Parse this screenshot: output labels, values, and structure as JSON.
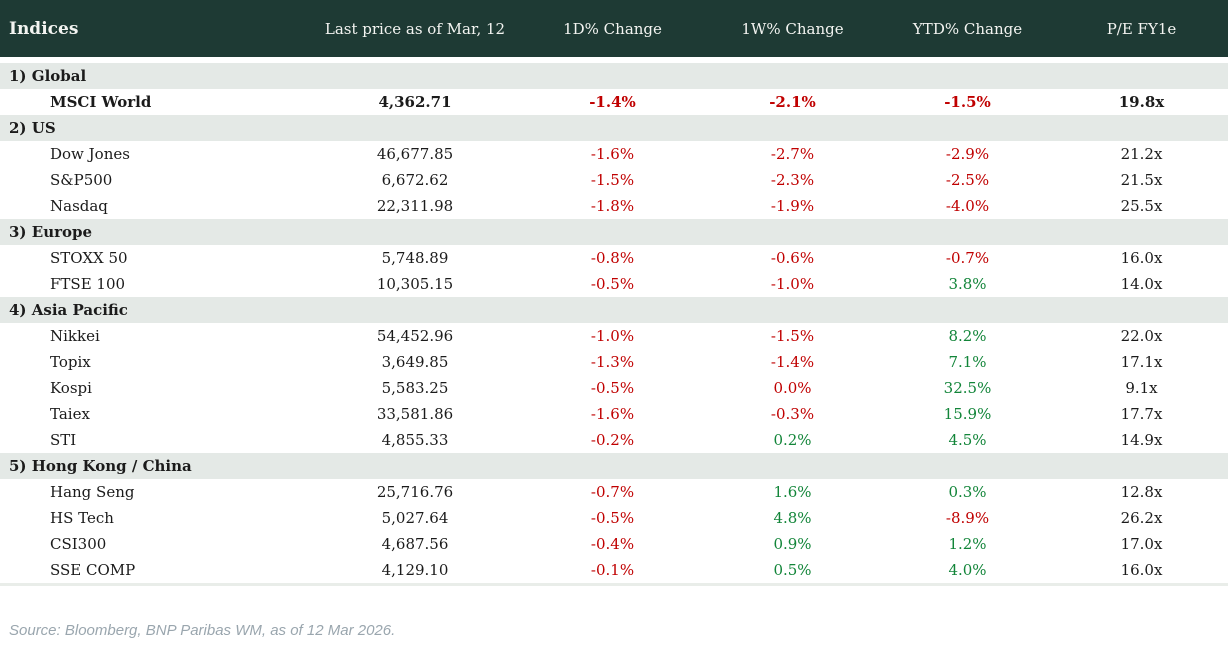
{
  "header": {
    "col_indices": "Indices",
    "columns": [
      "Last price as of Mar, 12",
      "1D% Change",
      "1W% Change",
      "YTD% Change",
      "P/E FY1e"
    ]
  },
  "sections": [
    {
      "label": "1) Global",
      "rows": [
        {
          "name": "MSCI World",
          "bold": true,
          "price": "4,362.71",
          "changes": [
            [
              "-1.4%",
              "neg"
            ],
            [
              "-2.1%",
              "neg"
            ],
            [
              "-1.5%",
              "neg"
            ]
          ],
          "pe": "19.8x"
        }
      ]
    },
    {
      "label": "2) US",
      "rows": [
        {
          "name": "Dow Jones",
          "bold": false,
          "price": "46,677.85",
          "changes": [
            [
              "-1.6%",
              "neg"
            ],
            [
              "-2.7%",
              "neg"
            ],
            [
              "-2.9%",
              "neg"
            ]
          ],
          "pe": "21.2x"
        },
        {
          "name": "S&P500",
          "bold": false,
          "price": "6,672.62",
          "changes": [
            [
              "-1.5%",
              "neg"
            ],
            [
              "-2.3%",
              "neg"
            ],
            [
              "-2.5%",
              "neg"
            ]
          ],
          "pe": "21.5x"
        },
        {
          "name": "Nasdaq",
          "bold": false,
          "price": "22,311.98",
          "changes": [
            [
              "-1.8%",
              "neg"
            ],
            [
              "-1.9%",
              "neg"
            ],
            [
              "-4.0%",
              "neg"
            ]
          ],
          "pe": "25.5x"
        }
      ]
    },
    {
      "label": "3) Europe",
      "rows": [
        {
          "name": "STOXX 50",
          "bold": false,
          "price": "5,748.89",
          "changes": [
            [
              "-0.8%",
              "neg"
            ],
            [
              "-0.6%",
              "neg"
            ],
            [
              "-0.7%",
              "neg"
            ]
          ],
          "pe": "16.0x"
        },
        {
          "name": "FTSE 100",
          "bold": false,
          "price": "10,305.15",
          "changes": [
            [
              "-0.5%",
              "neg"
            ],
            [
              "-1.0%",
              "neg"
            ],
            [
              "3.8%",
              "pos"
            ]
          ],
          "pe": "14.0x"
        }
      ]
    },
    {
      "label": "4) Asia Pacific",
      "rows": [
        {
          "name": "Nikkei",
          "bold": false,
          "price": "54,452.96",
          "changes": [
            [
              "-1.0%",
              "neg"
            ],
            [
              "-1.5%",
              "neg"
            ],
            [
              "8.2%",
              "pos"
            ]
          ],
          "pe": "22.0x"
        },
        {
          "name": "Topix",
          "bold": false,
          "price": "3,649.85",
          "changes": [
            [
              "-1.3%",
              "neg"
            ],
            [
              "-1.4%",
              "neg"
            ],
            [
              "7.1%",
              "pos"
            ]
          ],
          "pe": "17.1x"
        },
        {
          "name": "Kospi",
          "bold": false,
          "price": "5,583.25",
          "changes": [
            [
              "-0.5%",
              "neg"
            ],
            [
              "0.0%",
              "neg"
            ],
            [
              "32.5%",
              "pos"
            ]
          ],
          "pe": "9.1x"
        },
        {
          "name": "Taiex",
          "bold": false,
          "price": "33,581.86",
          "changes": [
            [
              "-1.6%",
              "neg"
            ],
            [
              "-0.3%",
              "neg"
            ],
            [
              "15.9%",
              "pos"
            ]
          ],
          "pe": "17.7x"
        },
        {
          "name": "STI",
          "bold": false,
          "price": "4,855.33",
          "changes": [
            [
              "-0.2%",
              "neg"
            ],
            [
              "0.2%",
              "pos"
            ],
            [
              "4.5%",
              "pos"
            ]
          ],
          "pe": "14.9x"
        }
      ]
    },
    {
      "label": "5) Hong Kong / China",
      "rows": [
        {
          "name": "Hang Seng",
          "bold": false,
          "price": "25,716.76",
          "changes": [
            [
              "-0.7%",
              "neg"
            ],
            [
              "1.6%",
              "pos"
            ],
            [
              "0.3%",
              "pos"
            ]
          ],
          "pe": "12.8x"
        },
        {
          "name": "HS Tech",
          "bold": false,
          "price": "5,027.64",
          "changes": [
            [
              "-0.5%",
              "neg"
            ],
            [
              "4.8%",
              "pos"
            ],
            [
              "-8.9%",
              "neg"
            ]
          ],
          "pe": "26.2x"
        },
        {
          "name": "CSI300",
          "bold": false,
          "price": "4,687.56",
          "changes": [
            [
              "-0.4%",
              "neg"
            ],
            [
              "0.9%",
              "pos"
            ],
            [
              "1.2%",
              "pos"
            ]
          ],
          "pe": "17.0x"
        },
        {
          "name": "SSE COMP",
          "bold": false,
          "price": "4,129.10",
          "changes": [
            [
              "-0.1%",
              "neg"
            ],
            [
              "0.5%",
              "pos"
            ],
            [
              "4.0%",
              "pos"
            ]
          ],
          "pe": "16.0x"
        }
      ]
    }
  ],
  "footer": {
    "source": "Source: Bloomberg, BNP Paribas WM, as of 12 Mar 2026."
  },
  "colors": {
    "header_bg": "#1e3a34",
    "header_text": "#f3f4f1",
    "section_bg": "#e4e9e6",
    "negative": "#c00000",
    "positive": "#128539",
    "text": "#1b1b1b",
    "source_text": "#9aa6ae"
  }
}
